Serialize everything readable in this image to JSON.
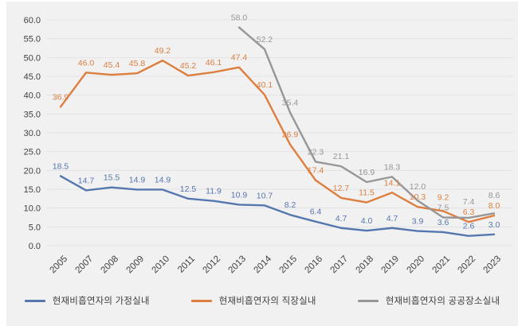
{
  "chart_style": {
    "background": "#f1f1f2",
    "grid_color": "#e2e2e4",
    "axis_text_color": "#3f3f3f",
    "legend_text_color": "#3f3f3f"
  },
  "chart_data": {
    "type": "line",
    "title": "",
    "xlabel": "",
    "ylabel": "",
    "categories": [
      "2005",
      "2007",
      "2008",
      "2009",
      "2010",
      "2011",
      "2012",
      "2013",
      "2014",
      "2015",
      "2016",
      "2017",
      "2018",
      "2019",
      "2020",
      "2021",
      "2022",
      "2023"
    ],
    "series": [
      {
        "name": "현재비흡연자의 가정실내",
        "semantic": "home-indoor",
        "color": "#5577ad",
        "values": [
          18.5,
          14.7,
          15.5,
          14.9,
          14.9,
          12.5,
          11.9,
          10.9,
          10.7,
          8.2,
          6.4,
          4.7,
          4.0,
          4.7,
          3.9,
          3.6,
          2.6,
          3.0
        ]
      },
      {
        "name": "현재비흡연자의 직장실내",
        "semantic": "workplace-indoor",
        "color": "#dd7e3f",
        "values": [
          36.9,
          46.0,
          45.4,
          45.8,
          49.2,
          45.2,
          46.1,
          47.4,
          40.1,
          26.9,
          17.4,
          12.7,
          11.5,
          14.1,
          10.3,
          9.2,
          6.3,
          8.0
        ]
      },
      {
        "name": "현재비흡연자의 공공장소실내",
        "semantic": "public-places-indoor",
        "color": "#969696",
        "values": [
          null,
          null,
          null,
          null,
          null,
          null,
          null,
          58.0,
          52.2,
          35.4,
          22.3,
          21.1,
          16.9,
          18.3,
          12.0,
          7.5,
          7.4,
          8.6
        ]
      }
    ],
    "ylim": [
      0,
      60
    ],
    "ytick_step": 5,
    "ytick_decimals": 1,
    "grid": true,
    "data_labels": true,
    "legend_position": "bottom"
  }
}
